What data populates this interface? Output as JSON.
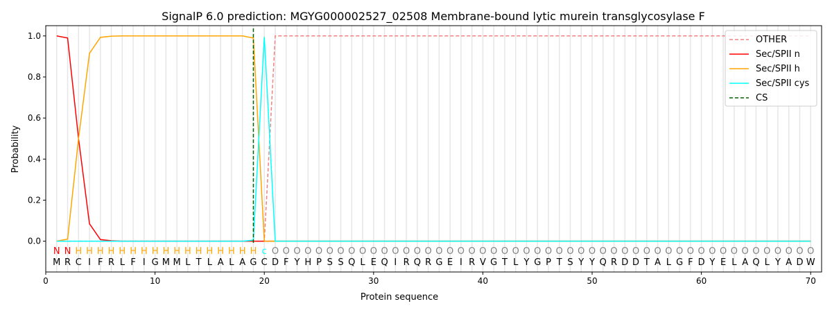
{
  "chart_data": {
    "type": "line",
    "title": "SignalP 6.0 prediction: MGYG000002527_02508 Membrane-bound lytic murein transglycosylase F",
    "xlabel": "Protein sequence",
    "ylabel": "Probability",
    "xlim": [
      0,
      71
    ],
    "ylim": [
      -0.15,
      1.05
    ],
    "xticks": [
      0,
      10,
      20,
      30,
      40,
      50,
      60,
      70
    ],
    "yticks": [
      0.0,
      0.2,
      0.4,
      0.6,
      0.8,
      1.0
    ],
    "sequence": "MRCIFRLFIGMMLTLALAGCDFYHPSSQLEQIRQRGEIRVGTLYGPTSYYQRDDTALGFDYELAQLYADW",
    "labels": "NNHHHHHHHHHHHHHHHHHcOOOOOOOOOOOOOOOOOOOOOOOOOOOOOOOOOOOOOOOOOOOOOOOOOO",
    "label_colors": {
      "N": "#ff0000",
      "H": "#ffa500",
      "c": "#00ffff",
      "O": "#808080"
    },
    "cs_position": 19,
    "legend_position": "top-right",
    "series": [
      {
        "name": "OTHER",
        "color": "#f08080",
        "dash": true,
        "sparse": {
          "1": 0,
          "20": 0,
          "21": 1.0,
          "70": 1.0
        }
      },
      {
        "name": "Sec/SPII n",
        "color": "#ff0000",
        "sparse": {
          "1": 1.0,
          "2": 0.99,
          "3": 0.5,
          "4": 0.085,
          "5": 0.008,
          "6": 0.002,
          "7": 0,
          "70": 0
        }
      },
      {
        "name": "Sec/SPII h",
        "color": "#ffa500",
        "sparse": {
          "1": 0,
          "2": 0.01,
          "3": 0.5,
          "4": 0.915,
          "5": 0.993,
          "6": 0.999,
          "7": 1.0,
          "18": 1.0,
          "19": 0.99,
          "20": 0,
          "21": 0,
          "70": 0
        }
      },
      {
        "name": "Sec/SPII cys",
        "color": "#00ffff",
        "sparse": {
          "1": 0,
          "18": 0,
          "19": 0.005,
          "20": 0.995,
          "21": 0,
          "70": 0
        }
      },
      {
        "name": "CS",
        "color": "#006400",
        "dash": true
      }
    ]
  }
}
